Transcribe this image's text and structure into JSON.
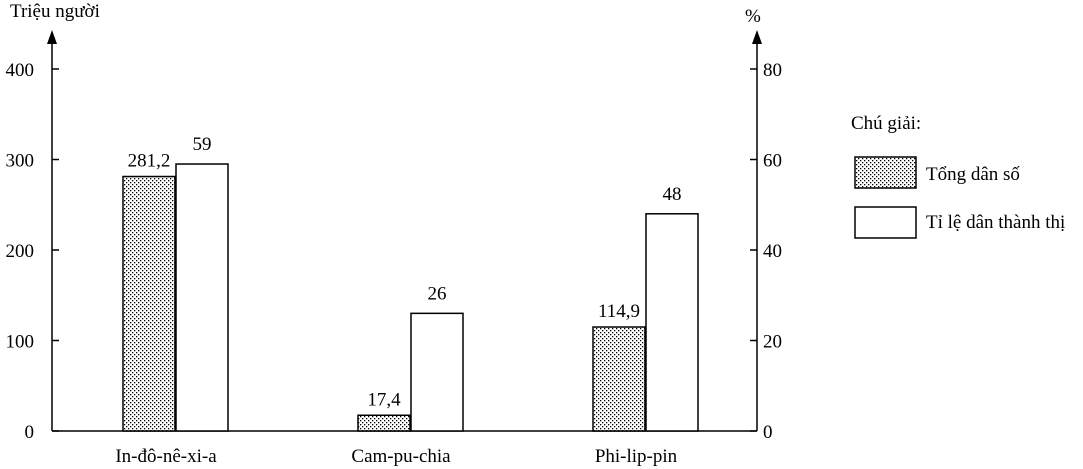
{
  "chart_data": {
    "type": "bar",
    "left_axis": {
      "label": "Triệu người",
      "ticks": [
        "0",
        "100",
        "200",
        "300",
        "400"
      ],
      "ylim": [
        0,
        400
      ]
    },
    "right_axis": {
      "label": "%",
      "ticks": [
        "0",
        "20",
        "40",
        "60",
        "80"
      ],
      "ylim": [
        0,
        80
      ]
    },
    "categories": [
      "In-đô-nê-xi-a",
      "Cam-pu-chia",
      "Phi-lip-pin"
    ],
    "series": [
      {
        "name": "Tổng dân số",
        "axis": "left",
        "fill": "dotted",
        "values": [
          281.2,
          17.4,
          114.9
        ],
        "labels": [
          "281,2",
          "17,4",
          "114,9"
        ]
      },
      {
        "name": "Tỉ lệ dân thành thị",
        "axis": "right",
        "fill": "white",
        "values": [
          59,
          26,
          48
        ],
        "labels": [
          "59",
          "26",
          "48"
        ]
      }
    ],
    "legend": {
      "title": "Chú giải:",
      "position": "right"
    },
    "grid": false
  }
}
